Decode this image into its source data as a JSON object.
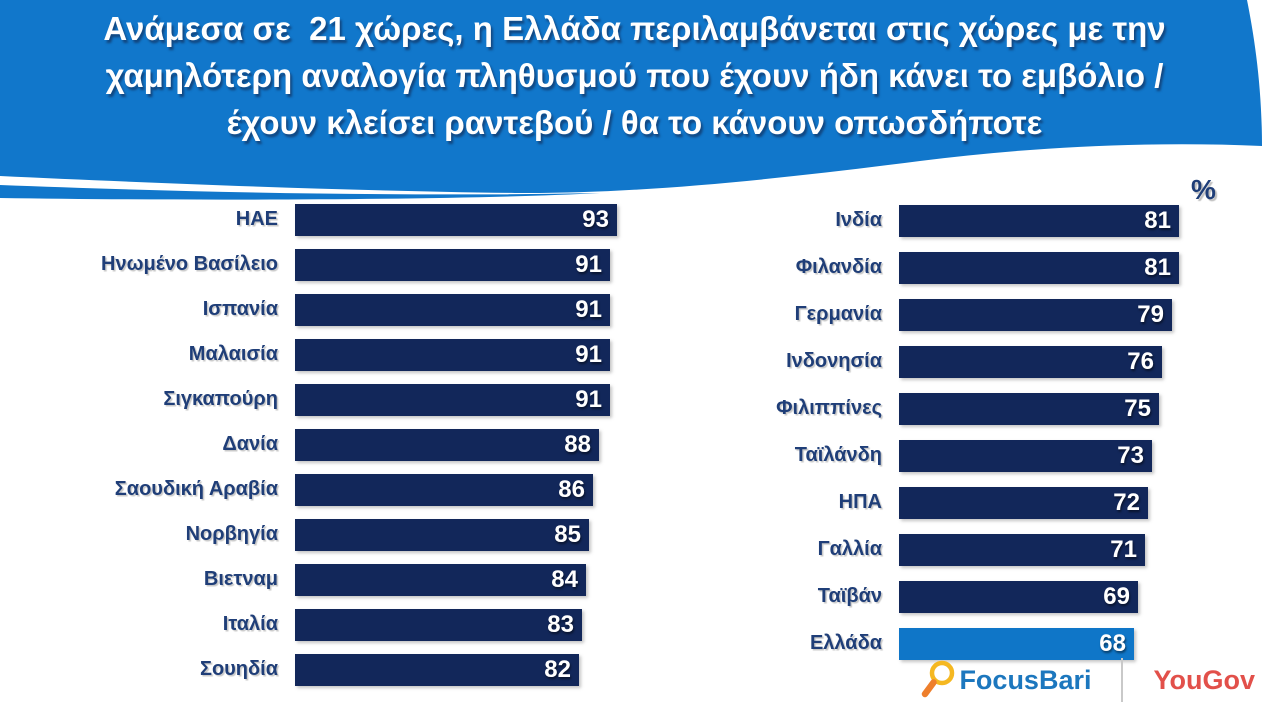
{
  "title": {
    "lines": [
      "Ανάμεσα σε  21 χώρες, η Ελλάδα περιλαμβάνεται στις χώρες με την",
      "χαμηλότερη αναλογία πληθυσμού που έχουν ήδη κάνει το εμβόλιο /",
      "έχουν κλείσει ραντεβού / θα το κάνουν οπωσδήποτε"
    ]
  },
  "chart_data": {
    "type": "bar",
    "orientation": "horizontal",
    "unit_label": "%",
    "xlim": [
      0,
      100
    ],
    "title": "Ανάμεσα σε 21 χώρες, η Ελλάδα περιλαμβάνεται στις χώρες με την χαμηλότερη αναλογία πληθυσμού που έχουν ήδη κάνει το εμβόλιο / έχουν κλείσει ραντεβού / θα το κάνουν οπωσδήποτε",
    "highlight_country": "Ελλάδα",
    "columns": [
      {
        "rows": [
          {
            "label": "ΗΑΕ",
            "value": 93
          },
          {
            "label": "Ηνωμένο Βασίλειο",
            "value": 91
          },
          {
            "label": "Ισπανία",
            "value": 91
          },
          {
            "label": "Μαλαισία",
            "value": 91
          },
          {
            "label": "Σιγκαπούρη",
            "value": 91
          },
          {
            "label": "Δανία",
            "value": 88
          },
          {
            "label": "Σαουδική Αραβία",
            "value": 86
          },
          {
            "label": "Νορβηγία",
            "value": 85
          },
          {
            "label": "Βιετναμ",
            "value": 84
          },
          {
            "label": "Ιταλία",
            "value": 83
          },
          {
            "label": "Σουηδία",
            "value": 82
          }
        ]
      },
      {
        "rows": [
          {
            "label": "Ινδία",
            "value": 81
          },
          {
            "label": "Φιλανδία",
            "value": 81
          },
          {
            "label": "Γερμανία",
            "value": 79
          },
          {
            "label": "Ινδονησία",
            "value": 76
          },
          {
            "label": "Φιλιππίνες",
            "value": 75
          },
          {
            "label": "Ταϊλάνδη",
            "value": 73
          },
          {
            "label": "ΗΠΑ",
            "value": 72
          },
          {
            "label": "Γαλλία",
            "value": 71
          },
          {
            "label": "Ταϊβάν",
            "value": 69
          },
          {
            "label": "Ελλάδα",
            "value": 68,
            "highlight": true
          }
        ]
      }
    ],
    "colors": {
      "banner_blue": "#1177CB",
      "bar_navy": "#12275A",
      "highlight_blue": "#0F76C8",
      "label_blue": "#1F3E78",
      "value_text": "#FFFFFF",
      "focusbari_blue": "#1C77BE",
      "yougov_red": "#E2504A"
    }
  },
  "footer": {
    "focusbari_label": "FocusBari",
    "yougov_label": "YouGov",
    "magnifier_icon": "magnifier-icon"
  }
}
